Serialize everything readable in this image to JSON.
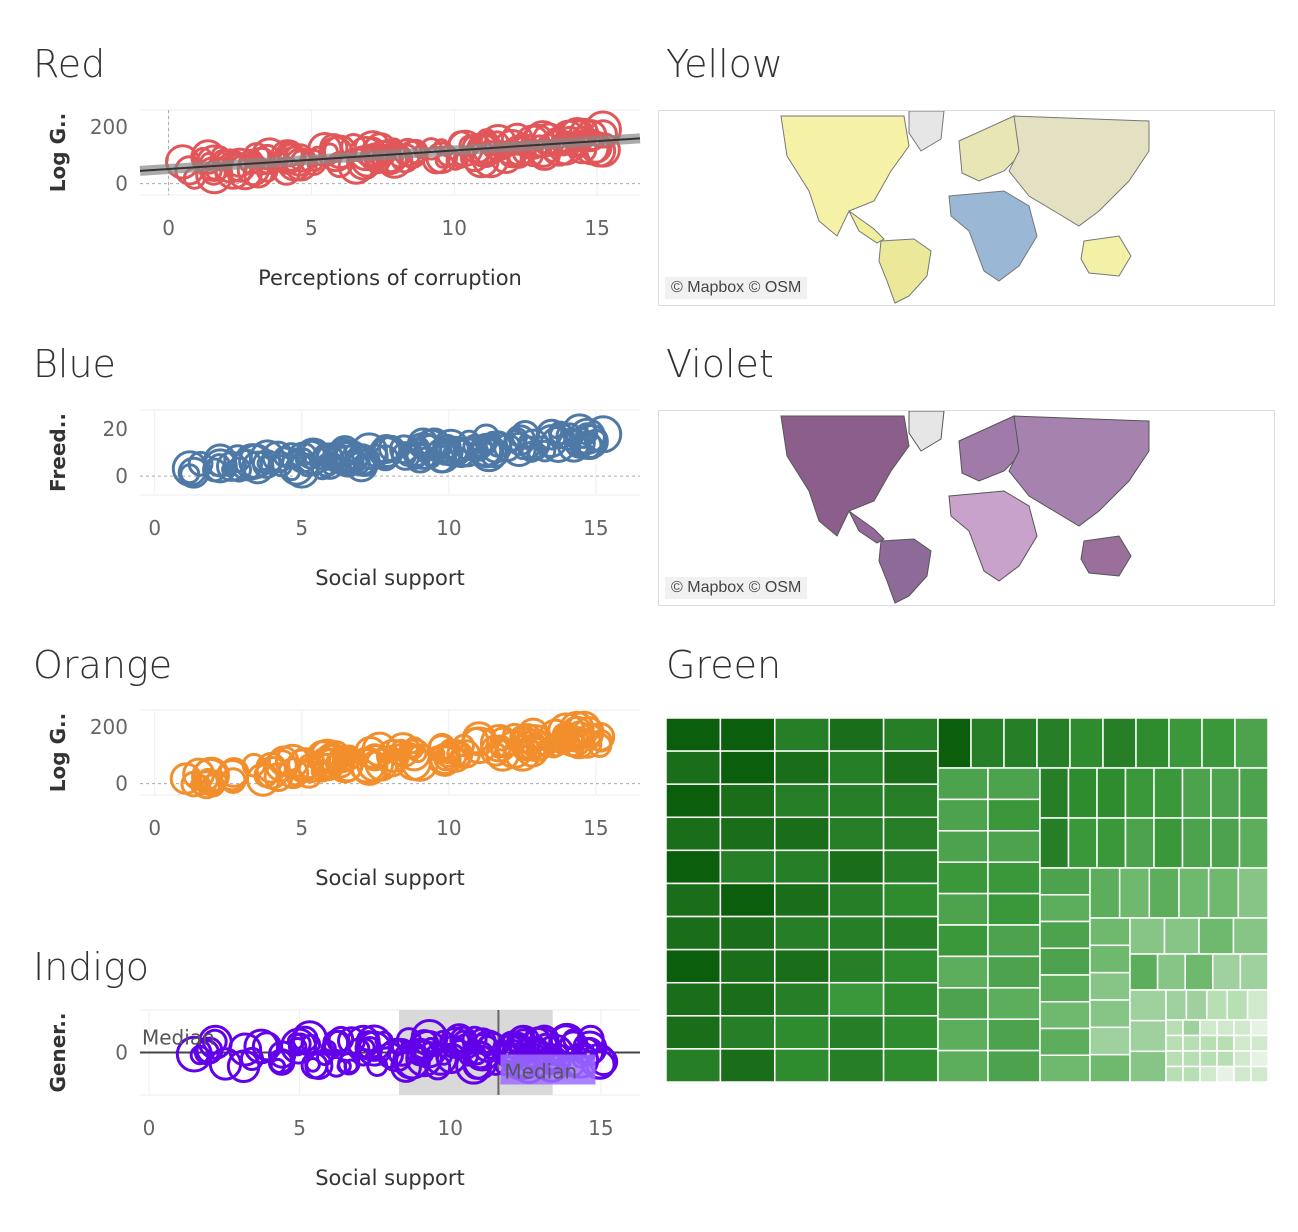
{
  "titles": {
    "red": "Red",
    "yellow": "Yellow",
    "blue": "Blue",
    "violet": "Violet",
    "orange": "Orange",
    "green": "Green",
    "indigo": "Indigo"
  },
  "colors": {
    "red": "#e15759",
    "blue": "#4e79a7",
    "orange": "#f28e2b",
    "indigo": "#6200ea",
    "yellow_map": "#f3f0a8",
    "violet_map": "#9b6f9b",
    "green_dark": "#0b5e0b",
    "green_light": "#c8e2c4"
  },
  "map_attribution": "© Mapbox © OSM",
  "chart_data": [
    {
      "id": "red",
      "type": "scatter",
      "title": "Red",
      "xlabel": "Perceptions of corruption",
      "ylabel": "Log G..",
      "xlim": [
        -1,
        16.5
      ],
      "ylim": [
        -40,
        260
      ],
      "xticks": [
        "0",
        "5",
        "10",
        "15"
      ],
      "yticks": [
        "0",
        "200"
      ],
      "trend_line": true,
      "start_value": 45,
      "end_value": 160,
      "spread": 40
    },
    {
      "id": "blue",
      "type": "scatter",
      "title": "Blue",
      "xlabel": "Social support",
      "ylabel": "Freed..",
      "xlim": [
        -0.5,
        16.5
      ],
      "ylim": [
        -8,
        28
      ],
      "xticks": [
        "0",
        "5",
        "10",
        "15"
      ],
      "yticks": [
        "0",
        "20"
      ],
      "trend_line": false,
      "start_value": 0,
      "end_value": 18,
      "spread": 4
    },
    {
      "id": "orange",
      "type": "scatter",
      "title": "Orange",
      "xlabel": "Social support",
      "ylabel": "Log G..",
      "xlim": [
        -0.5,
        16.5
      ],
      "ylim": [
        -40,
        260
      ],
      "xticks": [
        "0",
        "5",
        "10",
        "15"
      ],
      "yticks": [
        "0",
        "200"
      ],
      "trend_line": false,
      "start_value": 0,
      "end_value": 185,
      "spread": 35
    },
    {
      "id": "indigo",
      "type": "scatter",
      "title": "Indigo",
      "xlabel": "Social support",
      "ylabel": "Gener..",
      "xlim": [
        -0.3,
        16.3
      ],
      "ylim": [
        -1,
        1
      ],
      "xticks": [
        "0",
        "5",
        "10",
        "15"
      ],
      "yticks": [
        "0"
      ],
      "trend_line": false,
      "start_value": 0,
      "end_value": 0,
      "spread": 0.35,
      "reference_label": "Median",
      "median_x": 11.6,
      "band_x": [
        8.3,
        13.4
      ]
    },
    {
      "id": "green",
      "type": "heatmap",
      "title": "Green"
    }
  ]
}
